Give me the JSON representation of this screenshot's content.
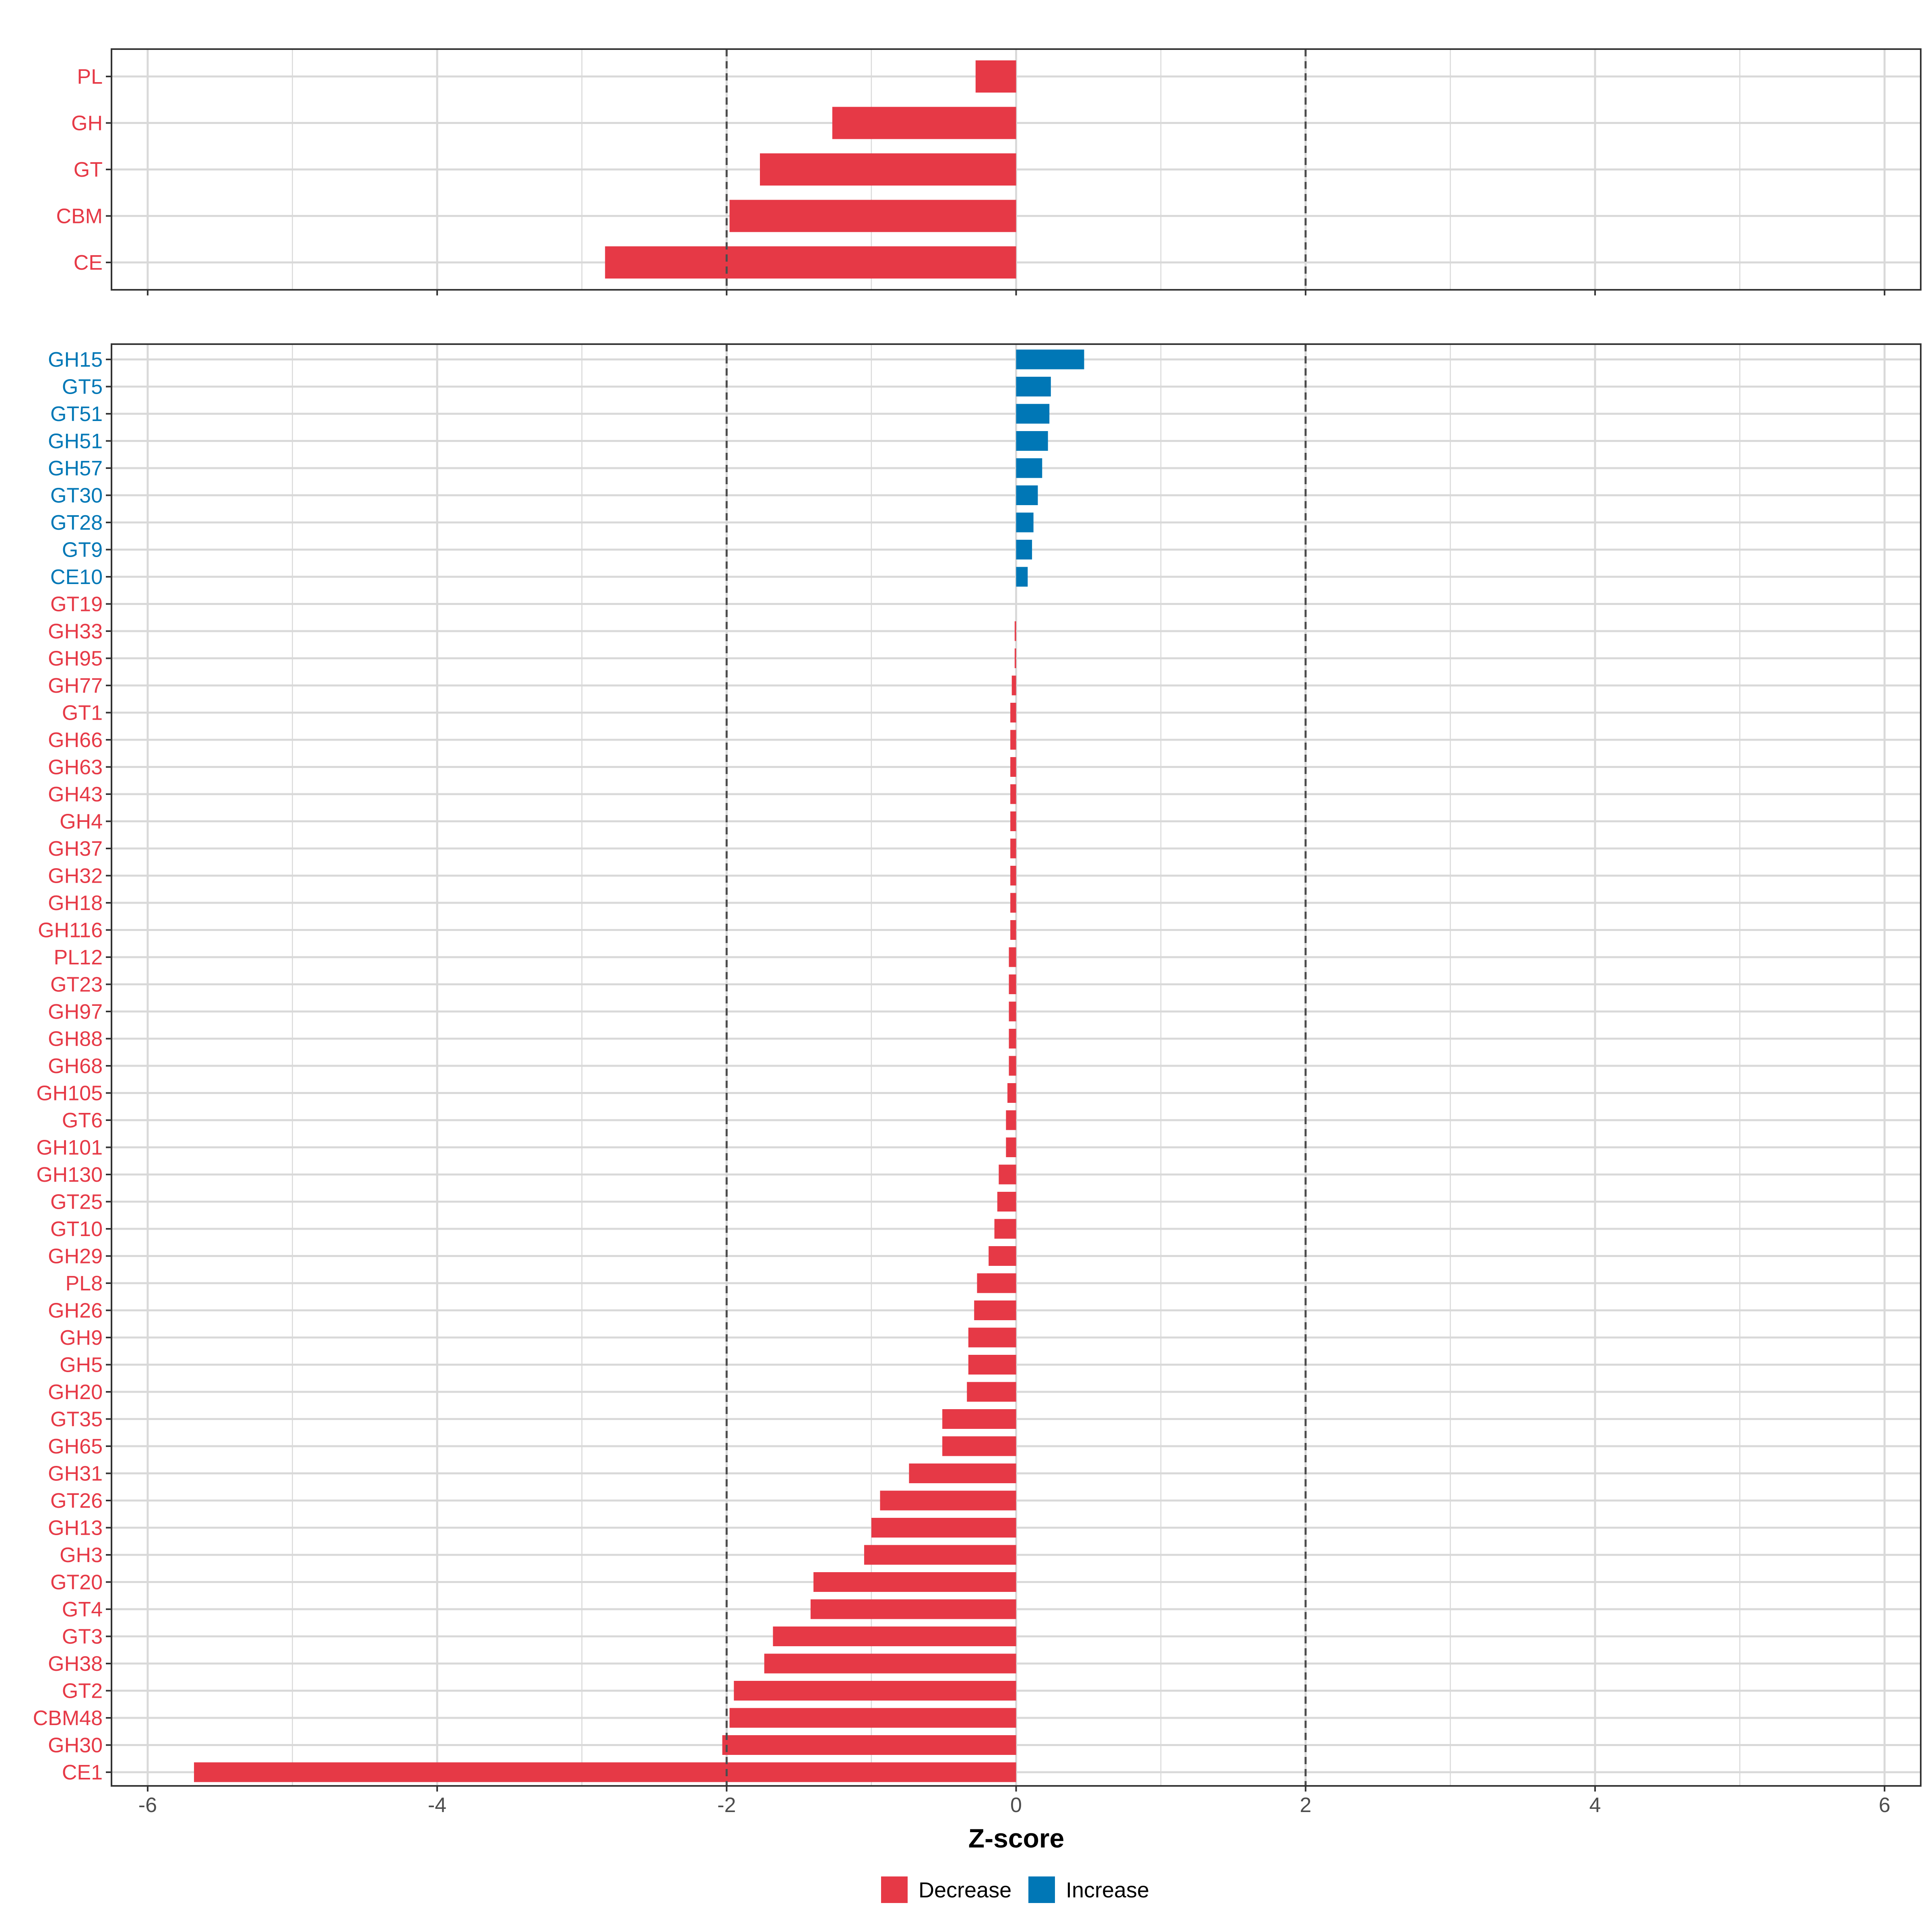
{
  "colors": {
    "decrease": "#e63946",
    "increase": "#0077b6",
    "grid": "#d9d9d9",
    "refline": "#4d4d4d",
    "axis": "#333333"
  },
  "chart_data": {
    "type": "bar",
    "orientation": "horizontal",
    "xlabel": "Z-score",
    "xlim": [
      -6.25,
      6.25
    ],
    "xticks": [
      "-6",
      "-4",
      "-2",
      "0",
      "2",
      "4",
      "6"
    ],
    "xtick_values": [
      -6,
      -4,
      -2,
      0,
      2,
      4,
      6
    ],
    "reference_lines": [
      -2,
      2
    ],
    "grid": true,
    "legend": {
      "placement": "bottom",
      "items": [
        {
          "label": "Decrease",
          "color_key": "decrease"
        },
        {
          "label": "Increase",
          "color_key": "increase"
        }
      ]
    },
    "panels": [
      {
        "name": "family-totals",
        "categories": [
          "PL",
          "GH",
          "GT",
          "CBM",
          "CE"
        ],
        "values": [
          -0.28,
          -1.27,
          -1.77,
          -1.98,
          -2.84
        ],
        "directions": [
          "Decrease",
          "Decrease",
          "Decrease",
          "Decrease",
          "Decrease"
        ]
      },
      {
        "name": "subfamilies",
        "categories": [
          "GH15",
          "GT5",
          "GT51",
          "GH51",
          "GH57",
          "GT30",
          "GT28",
          "GT9",
          "CE10",
          "GT19",
          "GH33",
          "GH95",
          "GH77",
          "GT1",
          "GH66",
          "GH63",
          "GH43",
          "GH4",
          "GH37",
          "GH32",
          "GH18",
          "GH116",
          "PL12",
          "GT23",
          "GH97",
          "GH88",
          "GH68",
          "GH105",
          "GT6",
          "GH101",
          "GH130",
          "GT25",
          "GT10",
          "GH29",
          "PL8",
          "GH26",
          "GH9",
          "GH5",
          "GH20",
          "GT35",
          "GH65",
          "GH31",
          "GT26",
          "GH13",
          "GH3",
          "GT20",
          "GT4",
          "GT3",
          "GH38",
          "GT2",
          "CBM48",
          "GH30",
          "CE1"
        ],
        "values": [
          0.47,
          0.24,
          0.23,
          0.22,
          0.18,
          0.15,
          0.12,
          0.11,
          0.08,
          0.0,
          -0.01,
          -0.01,
          -0.03,
          -0.04,
          -0.04,
          -0.04,
          -0.04,
          -0.04,
          -0.04,
          -0.04,
          -0.04,
          -0.04,
          -0.05,
          -0.05,
          -0.05,
          -0.05,
          -0.05,
          -0.06,
          -0.07,
          -0.07,
          -0.12,
          -0.13,
          -0.15,
          -0.19,
          -0.27,
          -0.29,
          -0.33,
          -0.33,
          -0.34,
          -0.51,
          -0.51,
          -0.74,
          -0.94,
          -1.0,
          -1.05,
          -1.4,
          -1.42,
          -1.68,
          -1.74,
          -1.95,
          -1.98,
          -2.03,
          -5.68
        ],
        "directions": [
          "Increase",
          "Increase",
          "Increase",
          "Increase",
          "Increase",
          "Increase",
          "Increase",
          "Increase",
          "Increase",
          "Decrease",
          "Decrease",
          "Decrease",
          "Decrease",
          "Decrease",
          "Decrease",
          "Decrease",
          "Decrease",
          "Decrease",
          "Decrease",
          "Decrease",
          "Decrease",
          "Decrease",
          "Decrease",
          "Decrease",
          "Decrease",
          "Decrease",
          "Decrease",
          "Decrease",
          "Decrease",
          "Decrease",
          "Decrease",
          "Decrease",
          "Decrease",
          "Decrease",
          "Decrease",
          "Decrease",
          "Decrease",
          "Decrease",
          "Decrease",
          "Decrease",
          "Decrease",
          "Decrease",
          "Decrease",
          "Decrease",
          "Decrease",
          "Decrease",
          "Decrease",
          "Decrease",
          "Decrease",
          "Decrease",
          "Decrease",
          "Decrease",
          "Decrease"
        ]
      }
    ]
  }
}
